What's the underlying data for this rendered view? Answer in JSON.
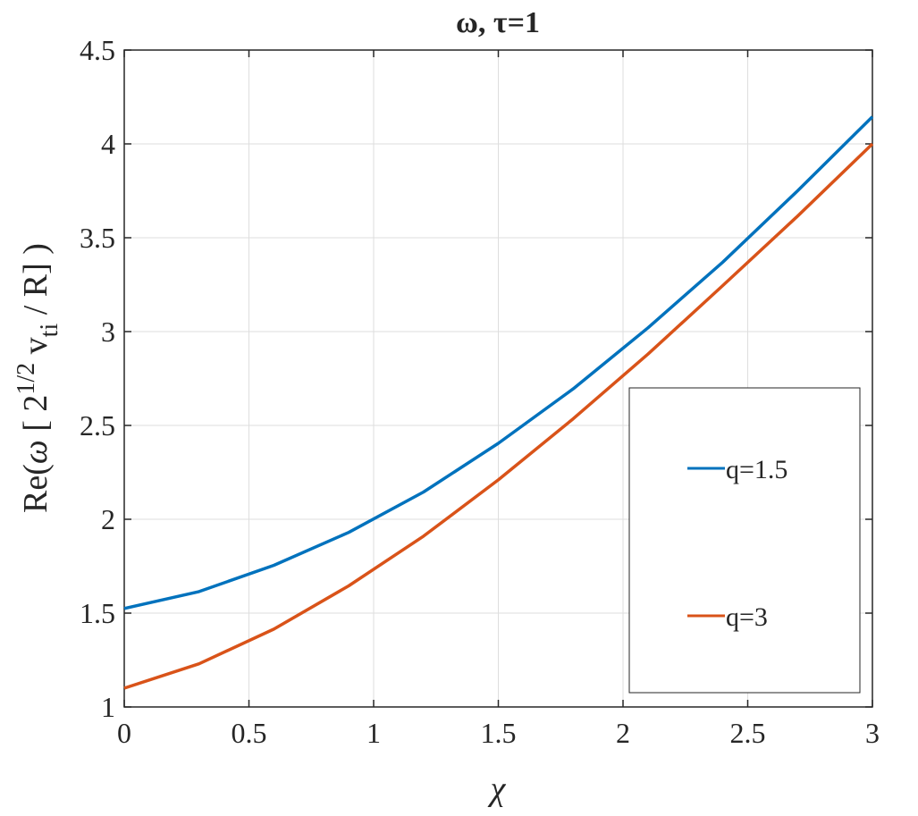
{
  "chart_data": {
    "type": "line",
    "title": "ω, τ=1",
    "xlabel": "χ",
    "ylabel": "Re(ω [ 2^1/2 v_ti / R] )",
    "ylabel_parts": {
      "prefix": "Re(",
      "omega": "ω",
      "bracket_open": " [ 2",
      "sup": "1/2",
      "v": " v",
      "sub": "ti",
      "suffix": " / R] )"
    },
    "xlim": [
      0,
      3
    ],
    "ylim": [
      1,
      4.5
    ],
    "xticks": [
      0,
      0.5,
      1,
      1.5,
      2,
      2.5,
      3
    ],
    "xtick_labels": [
      "0",
      "0.5",
      "1",
      "1.5",
      "2",
      "2.5",
      "3"
    ],
    "yticks": [
      1,
      1.5,
      2,
      2.5,
      3,
      3.5,
      4,
      4.5
    ],
    "ytick_labels": [
      "1",
      "1.5",
      "2",
      "2.5",
      "3",
      "3.5",
      "4",
      "4.5"
    ],
    "grid": true,
    "legend_position": "right",
    "series": [
      {
        "name": "q=1.5",
        "color": "#0072BD",
        "x": [
          0,
          0.3,
          0.6,
          0.9,
          1.2,
          1.5,
          1.8,
          2.1,
          2.4,
          2.7,
          3.0
        ],
        "y": [
          1.525,
          1.615,
          1.755,
          1.93,
          2.145,
          2.405,
          2.695,
          3.02,
          3.37,
          3.75,
          4.145
        ]
      },
      {
        "name": "q=3",
        "color": "#D95319",
        "x": [
          0,
          0.3,
          0.6,
          0.9,
          1.2,
          1.5,
          1.8,
          2.1,
          2.4,
          2.7,
          3.0
        ],
        "y": [
          1.1,
          1.23,
          1.415,
          1.645,
          1.91,
          2.21,
          2.535,
          2.88,
          3.245,
          3.615,
          4.0
        ]
      }
    ]
  }
}
